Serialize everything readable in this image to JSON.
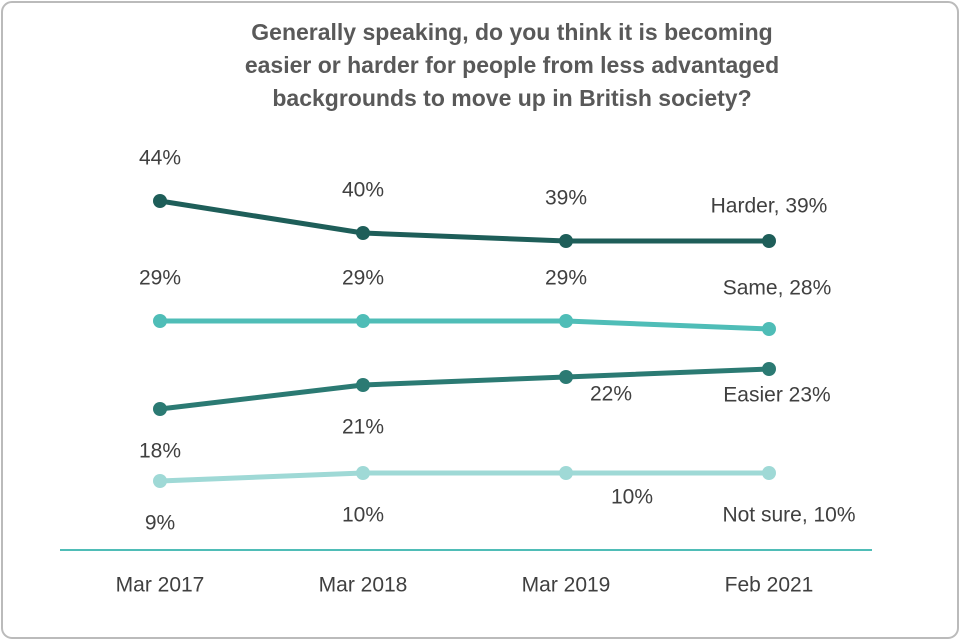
{
  "chart_data": {
    "type": "line",
    "title": [
      "Generally speaking, do you think it is becoming",
      "easier or harder for people from less advantaged",
      "backgrounds to move up in British society?"
    ],
    "categories": [
      "Mar 2017",
      "Mar 2018",
      "Mar 2019",
      "Feb 2021"
    ],
    "series": [
      {
        "color": "#1e5e59",
        "values": [
          44,
          40,
          39,
          39
        ],
        "value_labels": [
          "44%",
          "40%",
          "39%",
          "Harder, 39%"
        ]
      },
      {
        "color": "#4fbdb7",
        "values": [
          29,
          29,
          29,
          28
        ],
        "value_labels": [
          "29%",
          "29%",
          "29%",
          "Same, 28%"
        ]
      },
      {
        "color": "#2b7a73",
        "values": [
          18,
          21,
          22,
          23
        ],
        "value_labels": [
          "18%",
          "21%",
          "22%",
          "Easier 23%"
        ]
      },
      {
        "color": "#9fd9d6",
        "values": [
          9,
          10,
          10,
          10
        ],
        "value_labels": [
          "9%",
          "10%",
          "10%",
          "Not sure, 10%"
        ]
      }
    ]
  }
}
